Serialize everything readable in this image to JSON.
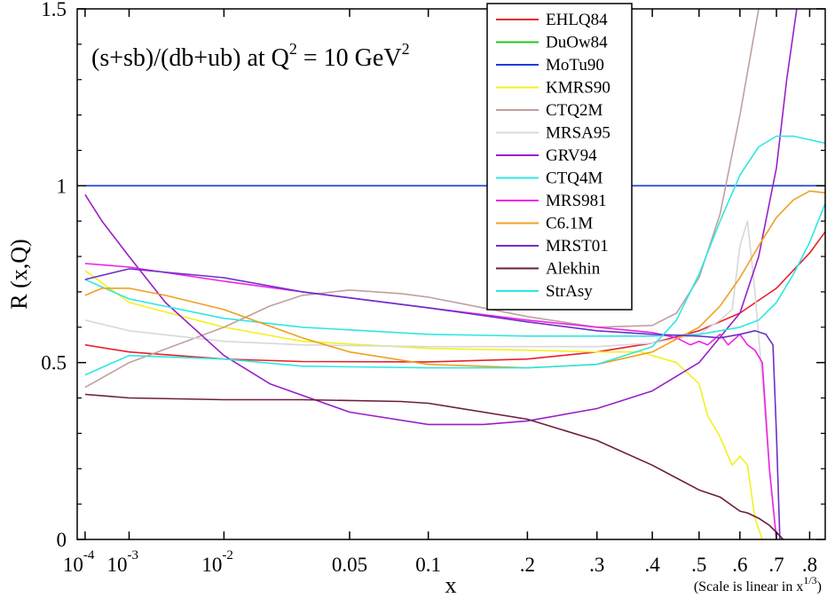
{
  "chart_data": {
    "type": "line",
    "title": "(s+sb)/(db+ub) at Q^2 = 10 GeV^2",
    "annotation": {
      "main": "(s+sb)/(db+ub) at Q",
      "sup1": "2",
      "mid": " = 10 GeV",
      "sup2": "2"
    },
    "xlabel": "x",
    "ylabel": "R (x,Q)",
    "x_scale": "x^(1/3)",
    "x_note": {
      "main": "(Scale is linear in x",
      "sup": "1/3",
      "end": ")"
    },
    "xlim": [
      5e-05,
      0.85
    ],
    "ylim": [
      0,
      1.5
    ],
    "x_ticks": [
      {
        "value": 0.0001,
        "base": "10",
        "exp": "-4"
      },
      {
        "value": 0.001,
        "base": "10",
        "exp": "-3"
      },
      {
        "value": 0.01,
        "base": "10",
        "exp": "-2"
      },
      {
        "value": 0.05,
        "label": "0.05"
      },
      {
        "value": 0.1,
        "label": "0.1"
      },
      {
        "value": 0.2,
        "label": ".2"
      },
      {
        "value": 0.3,
        "label": ".3"
      },
      {
        "value": 0.4,
        "label": ".4"
      },
      {
        "value": 0.5,
        "label": ".5"
      },
      {
        "value": 0.6,
        "label": ".6"
      },
      {
        "value": 0.7,
        "label": ".7"
      },
      {
        "value": 0.8,
        "label": ".8"
      }
    ],
    "y_ticks": [
      {
        "value": 0,
        "label": "0"
      },
      {
        "value": 0.5,
        "label": "0.5"
      },
      {
        "value": 1,
        "label": "1"
      },
      {
        "value": 1.5,
        "label": "1.5"
      }
    ],
    "legend_position": "top-center",
    "series": [
      {
        "name": "EHLQ84",
        "color": "#e8202a",
        "points": [
          [
            0.0001,
            0.55
          ],
          [
            0.001,
            0.53
          ],
          [
            0.01,
            0.51
          ],
          [
            0.03,
            0.503
          ],
          [
            0.1,
            0.502
          ],
          [
            0.2,
            0.51
          ],
          [
            0.3,
            0.53
          ],
          [
            0.4,
            0.555
          ],
          [
            0.5,
            0.59
          ],
          [
            0.6,
            0.64
          ],
          [
            0.7,
            0.71
          ],
          [
            0.8,
            0.81
          ],
          [
            0.85,
            0.87
          ]
        ]
      },
      {
        "name": "DuOw84",
        "color": "#22c822",
        "points": [
          [
            0.0001,
            1.0
          ],
          [
            0.85,
            1.0
          ]
        ]
      },
      {
        "name": "MoTu90",
        "color": "#1a3ed8",
        "points": [
          [
            0.0001,
            1.0
          ],
          [
            0.85,
            1.0
          ]
        ]
      },
      {
        "name": "KMRS90",
        "color": "#f5f020",
        "points": [
          [
            0.0001,
            0.76
          ],
          [
            0.001,
            0.67
          ],
          [
            0.01,
            0.6
          ],
          [
            0.03,
            0.56
          ],
          [
            0.1,
            0.54
          ],
          [
            0.2,
            0.535
          ],
          [
            0.3,
            0.53
          ],
          [
            0.38,
            0.53
          ],
          [
            0.4,
            0.52
          ],
          [
            0.45,
            0.5
          ],
          [
            0.5,
            0.44
          ],
          [
            0.52,
            0.35
          ],
          [
            0.55,
            0.29
          ],
          [
            0.58,
            0.21
          ],
          [
            0.6,
            0.235
          ],
          [
            0.62,
            0.21
          ],
          [
            0.64,
            0.06
          ],
          [
            0.66,
            0.0
          ]
        ]
      },
      {
        "name": "CTQ2M",
        "color": "#c0a09e",
        "points": [
          [
            0.0001,
            0.43
          ],
          [
            0.001,
            0.5
          ],
          [
            0.01,
            0.6
          ],
          [
            0.02,
            0.66
          ],
          [
            0.03,
            0.69
          ],
          [
            0.05,
            0.705
          ],
          [
            0.08,
            0.695
          ],
          [
            0.1,
            0.685
          ],
          [
            0.2,
            0.63
          ],
          [
            0.3,
            0.6
          ],
          [
            0.4,
            0.605
          ],
          [
            0.45,
            0.64
          ],
          [
            0.5,
            0.74
          ],
          [
            0.55,
            0.92
          ],
          [
            0.6,
            1.2
          ],
          [
            0.65,
            1.5
          ]
        ]
      },
      {
        "name": "MRSA95",
        "color": "#d8d8d8",
        "points": [
          [
            0.0001,
            0.62
          ],
          [
            0.001,
            0.59
          ],
          [
            0.01,
            0.56
          ],
          [
            0.03,
            0.55
          ],
          [
            0.1,
            0.545
          ],
          [
            0.2,
            0.545
          ],
          [
            0.3,
            0.545
          ],
          [
            0.4,
            0.555
          ],
          [
            0.5,
            0.58
          ],
          [
            0.55,
            0.62
          ],
          [
            0.58,
            0.65
          ],
          [
            0.6,
            0.83
          ],
          [
            0.62,
            0.9
          ],
          [
            0.64,
            0.7
          ],
          [
            0.66,
            0.45
          ],
          [
            0.68,
            0.2
          ],
          [
            0.7,
            0.0
          ]
        ]
      },
      {
        "name": "GRV94",
        "color": "#9a1fc8",
        "points": [
          [
            0.0001,
            0.975
          ],
          [
            0.0003,
            0.9
          ],
          [
            0.001,
            0.8
          ],
          [
            0.003,
            0.67
          ],
          [
            0.01,
            0.52
          ],
          [
            0.02,
            0.44
          ],
          [
            0.05,
            0.36
          ],
          [
            0.1,
            0.325
          ],
          [
            0.15,
            0.325
          ],
          [
            0.2,
            0.335
          ],
          [
            0.3,
            0.37
          ],
          [
            0.4,
            0.42
          ],
          [
            0.5,
            0.5
          ],
          [
            0.6,
            0.64
          ],
          [
            0.65,
            0.8
          ],
          [
            0.7,
            1.05
          ],
          [
            0.73,
            1.3
          ],
          [
            0.76,
            1.5
          ]
        ]
      },
      {
        "name": "CTQ4M",
        "color": "#2de8e0",
        "points": [
          [
            0.0001,
            0.735
          ],
          [
            0.001,
            0.68
          ],
          [
            0.01,
            0.625
          ],
          [
            0.03,
            0.6
          ],
          [
            0.1,
            0.58
          ],
          [
            0.2,
            0.575
          ],
          [
            0.3,
            0.575
          ],
          [
            0.4,
            0.575
          ],
          [
            0.5,
            0.58
          ],
          [
            0.55,
            0.59
          ],
          [
            0.6,
            0.6
          ],
          [
            0.65,
            0.62
          ],
          [
            0.7,
            0.67
          ],
          [
            0.75,
            0.75
          ],
          [
            0.8,
            0.84
          ],
          [
            0.85,
            0.95
          ]
        ]
      },
      {
        "name": "MRS981",
        "color": "#f020e8",
        "points": [
          [
            0.0001,
            0.78
          ],
          [
            0.001,
            0.77
          ],
          [
            0.01,
            0.73
          ],
          [
            0.03,
            0.7
          ],
          [
            0.1,
            0.655
          ],
          [
            0.2,
            0.62
          ],
          [
            0.3,
            0.6
          ],
          [
            0.4,
            0.585
          ],
          [
            0.45,
            0.57
          ],
          [
            0.48,
            0.55
          ],
          [
            0.5,
            0.56
          ],
          [
            0.52,
            0.55
          ],
          [
            0.55,
            0.58
          ],
          [
            0.57,
            0.55
          ],
          [
            0.6,
            0.58
          ],
          [
            0.62,
            0.55
          ],
          [
            0.64,
            0.535
          ],
          [
            0.66,
            0.5
          ],
          [
            0.68,
            0.2
          ],
          [
            0.7,
            0.0
          ]
        ]
      },
      {
        "name": "C6.1M",
        "color": "#f0a020",
        "points": [
          [
            0.0001,
            0.69
          ],
          [
            0.0003,
            0.71
          ],
          [
            0.001,
            0.71
          ],
          [
            0.003,
            0.69
          ],
          [
            0.01,
            0.65
          ],
          [
            0.03,
            0.57
          ],
          [
            0.05,
            0.53
          ],
          [
            0.1,
            0.495
          ],
          [
            0.2,
            0.485
          ],
          [
            0.3,
            0.495
          ],
          [
            0.4,
            0.53
          ],
          [
            0.5,
            0.6
          ],
          [
            0.55,
            0.66
          ],
          [
            0.6,
            0.74
          ],
          [
            0.65,
            0.83
          ],
          [
            0.7,
            0.91
          ],
          [
            0.75,
            0.96
          ],
          [
            0.8,
            0.985
          ],
          [
            0.85,
            0.98
          ]
        ]
      },
      {
        "name": "MRST01",
        "color": "#6a30c8",
        "points": [
          [
            0.0001,
            0.735
          ],
          [
            0.001,
            0.765
          ],
          [
            0.01,
            0.74
          ],
          [
            0.03,
            0.7
          ],
          [
            0.1,
            0.655
          ],
          [
            0.2,
            0.615
          ],
          [
            0.3,
            0.59
          ],
          [
            0.4,
            0.58
          ],
          [
            0.5,
            0.575
          ],
          [
            0.55,
            0.57
          ],
          [
            0.6,
            0.58
          ],
          [
            0.64,
            0.59
          ],
          [
            0.67,
            0.58
          ],
          [
            0.69,
            0.55
          ],
          [
            0.7,
            0.3
          ],
          [
            0.71,
            0.0
          ]
        ]
      },
      {
        "name": "Alekhin",
        "color": "#6b1e3e",
        "points": [
          [
            0.0001,
            0.41
          ],
          [
            0.001,
            0.4
          ],
          [
            0.01,
            0.395
          ],
          [
            0.03,
            0.395
          ],
          [
            0.08,
            0.39
          ],
          [
            0.1,
            0.385
          ],
          [
            0.2,
            0.34
          ],
          [
            0.3,
            0.28
          ],
          [
            0.4,
            0.21
          ],
          [
            0.5,
            0.14
          ],
          [
            0.55,
            0.12
          ],
          [
            0.6,
            0.08
          ],
          [
            0.62,
            0.075
          ],
          [
            0.65,
            0.06
          ],
          [
            0.68,
            0.04
          ],
          [
            0.7,
            0.02
          ],
          [
            0.72,
            0.0
          ]
        ]
      },
      {
        "name": "StrAsy",
        "color": "#2de8e0",
        "points": [
          [
            0.0001,
            0.465
          ],
          [
            0.001,
            0.52
          ],
          [
            0.01,
            0.51
          ],
          [
            0.03,
            0.49
          ],
          [
            0.1,
            0.485
          ],
          [
            0.2,
            0.485
          ],
          [
            0.3,
            0.495
          ],
          [
            0.4,
            0.545
          ],
          [
            0.45,
            0.62
          ],
          [
            0.5,
            0.75
          ],
          [
            0.55,
            0.9
          ],
          [
            0.6,
            1.03
          ],
          [
            0.65,
            1.11
          ],
          [
            0.7,
            1.14
          ],
          [
            0.75,
            1.14
          ],
          [
            0.8,
            1.13
          ],
          [
            0.85,
            1.12
          ]
        ]
      }
    ]
  }
}
